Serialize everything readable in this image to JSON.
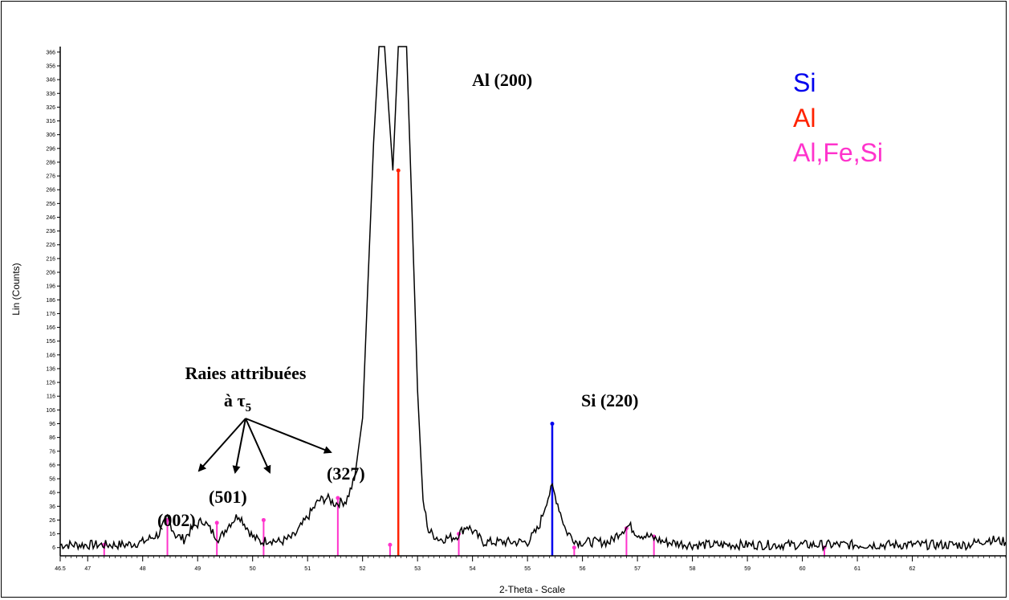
{
  "chart_data": {
    "type": "line",
    "title": "",
    "xlabel": "2-Theta - Scale",
    "ylabel": "Lin (Counts)",
    "xlim": [
      46.5,
      63.7
    ],
    "ylim": [
      0,
      370
    ],
    "x_tick_labels": [
      "46.5",
      "47",
      "48",
      "49",
      "50",
      "51",
      "52",
      "53",
      "54",
      "55",
      "56",
      "57",
      "58",
      "59",
      "60",
      "61",
      "62"
    ],
    "y_tick_labels": [
      "6",
      "16",
      "26",
      "36",
      "46",
      "56",
      "66",
      "76",
      "86",
      "96",
      "106",
      "116",
      "126",
      "136",
      "146",
      "156",
      "166",
      "176",
      "186",
      "196",
      "206",
      "216",
      "226",
      "236",
      "246",
      "256",
      "266",
      "276",
      "286",
      "296",
      "306",
      "316",
      "326",
      "336",
      "346",
      "356",
      "366"
    ],
    "series": [
      {
        "x": [
          46.5,
          46.9,
          47.3,
          47.7,
          48.0,
          48.3,
          48.45,
          48.6,
          48.75,
          48.9,
          49.1,
          49.25,
          49.4,
          49.55,
          49.75,
          50.0,
          50.15,
          50.3,
          50.5,
          50.75,
          51.0,
          51.2,
          51.35,
          51.5,
          51.7,
          51.85,
          52.0,
          52.2,
          52.3,
          52.4,
          52.55,
          52.65,
          52.8,
          52.9,
          53.0,
          53.1,
          53.2,
          53.4,
          53.7,
          53.9,
          54.2,
          54.5,
          54.8,
          55.0,
          55.2,
          55.35,
          55.45,
          55.55,
          55.7,
          55.9,
          56.2,
          56.5,
          56.7,
          56.85,
          57.0,
          57.2,
          57.5,
          58.0,
          58.5,
          59.0,
          59.5,
          60.0,
          60.5,
          61.0,
          61.5,
          62.0,
          62.5,
          63.0,
          63.4,
          63.7
        ],
        "y": [
          8,
          8,
          8,
          8,
          10,
          16,
          28,
          15,
          12,
          20,
          26,
          18,
          12,
          22,
          30,
          14,
          10,
          12,
          10,
          14,
          28,
          40,
          42,
          38,
          40,
          55,
          100,
          300,
          370,
          370,
          280,
          370,
          370,
          250,
          120,
          40,
          18,
          12,
          14,
          22,
          10,
          10,
          10,
          10,
          20,
          40,
          50,
          38,
          18,
          10,
          10,
          10,
          18,
          22,
          16,
          14,
          10,
          8,
          8,
          8,
          8,
          8,
          8,
          8,
          8,
          8,
          8,
          8,
          12,
          10
        ]
      }
    ],
    "phases": [
      {
        "name": "Si",
        "color": "#0000ee",
        "peaks": [
          {
            "x": 55.45,
            "y": 96
          }
        ]
      },
      {
        "name": "Al",
        "color": "#ff2200",
        "peaks": [
          {
            "x": 52.65,
            "y": 280
          }
        ]
      },
      {
        "name": "Al,Fe,Si",
        "color": "#ff33cc",
        "peaks": [
          {
            "x": 47.3,
            "y": 8
          },
          {
            "x": 48.45,
            "y": 26
          },
          {
            "x": 49.35,
            "y": 24
          },
          {
            "x": 50.2,
            "y": 26
          },
          {
            "x": 51.55,
            "y": 42
          },
          {
            "x": 52.5,
            "y": 8
          },
          {
            "x": 53.75,
            "y": 16
          },
          {
            "x": 55.85,
            "y": 6
          },
          {
            "x": 56.8,
            "y": 20
          },
          {
            "x": 57.3,
            "y": 14
          },
          {
            "x": 60.4,
            "y": 6
          }
        ]
      }
    ],
    "grid": false,
    "legend": "top-right"
  },
  "annotations": {
    "al200": "Al (200)",
    "si220": "Si (220)",
    "tau_line1": "Raies attribuées",
    "tau_line2_pre": "à τ",
    "tau_sub": "5",
    "p002": "(002)",
    "p501": "(501)",
    "p327": "(327)"
  }
}
